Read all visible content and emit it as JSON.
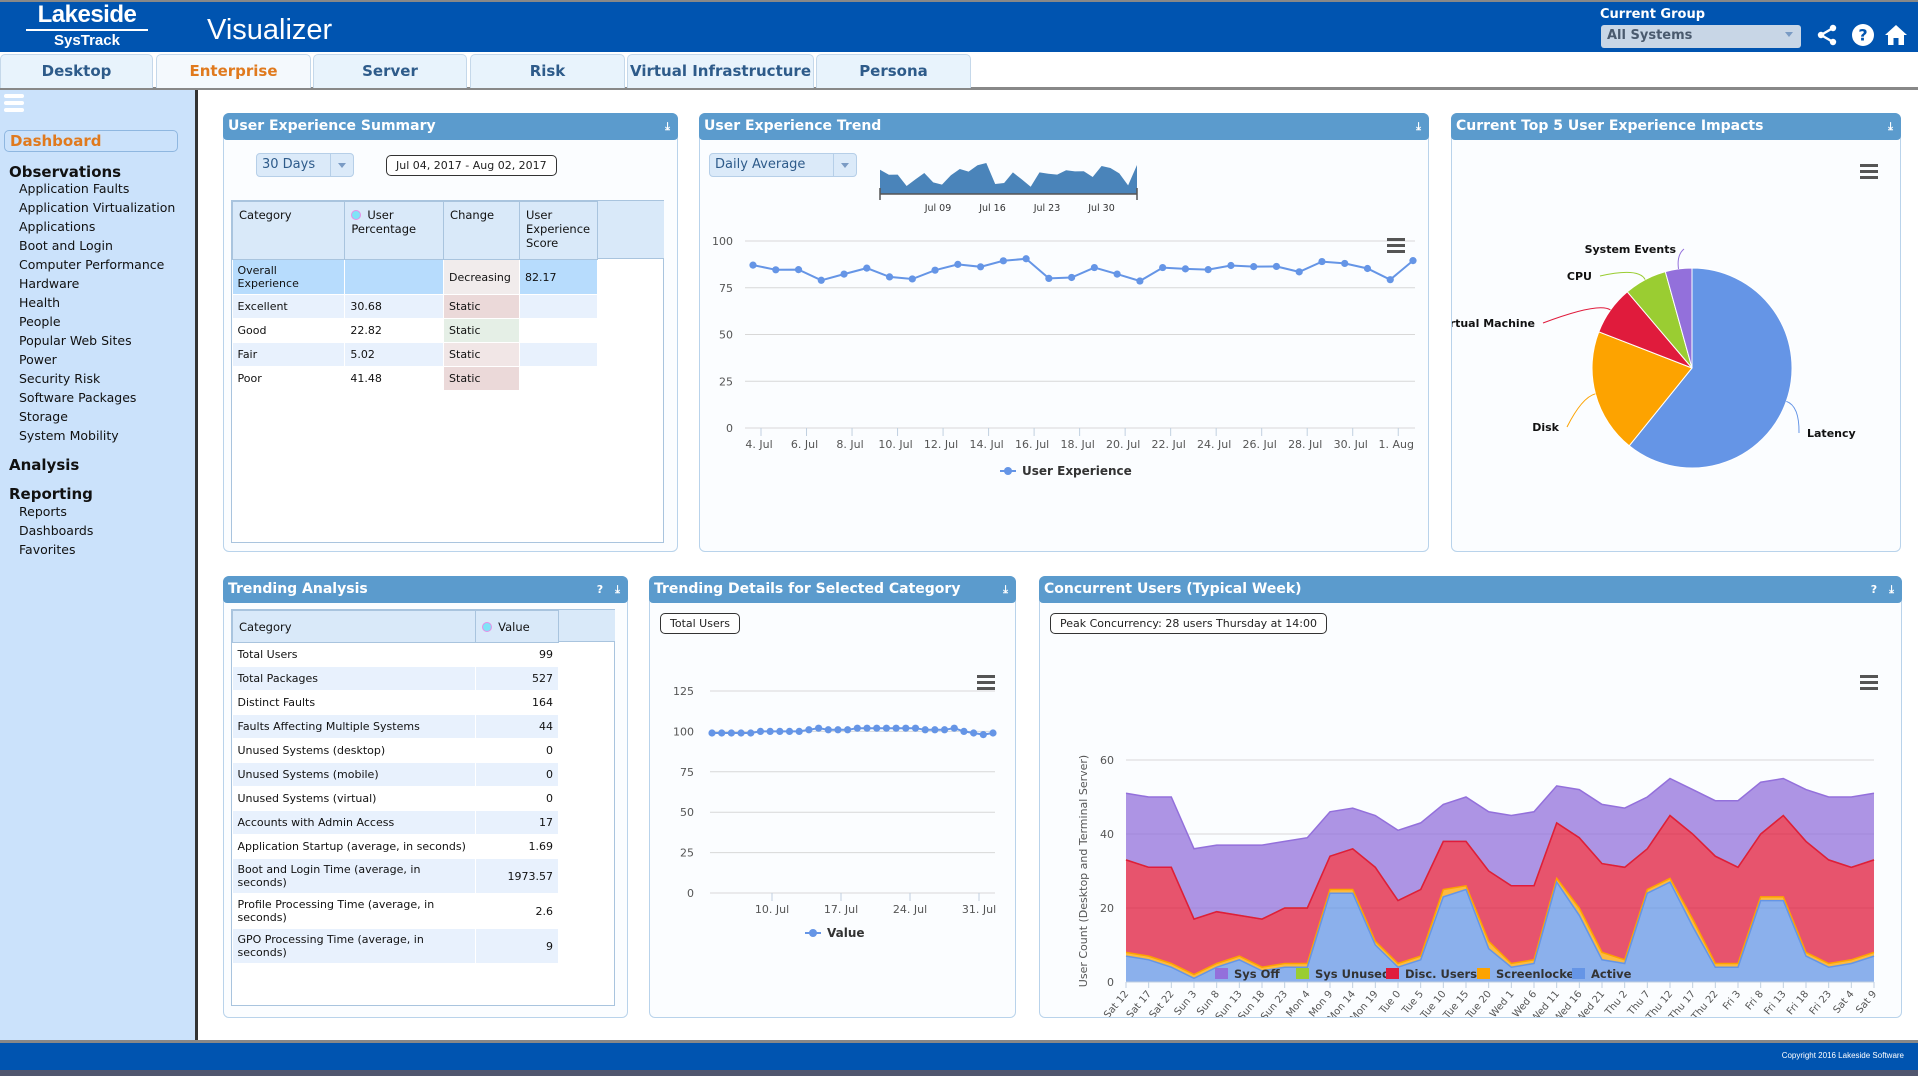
{
  "header": {
    "logo_top": "Lakeside",
    "logo_bottom": "SysTrack",
    "app_title": "Visualizer",
    "group_label": "Current Group",
    "group_value": "All Systems",
    "icons": [
      "share-icon",
      "help-icon",
      "home-icon"
    ]
  },
  "tabs": [
    {
      "label": "Desktop",
      "active": false
    },
    {
      "label": "Enterprise",
      "active": true
    },
    {
      "label": "Server",
      "active": false
    },
    {
      "label": "Risk",
      "active": false
    },
    {
      "label": "Virtual Infrastructure",
      "active": false
    },
    {
      "label": "Persona",
      "active": false
    }
  ],
  "sidebar": {
    "dashboard": "Dashboard",
    "sections": [
      {
        "title": "Observations",
        "items": [
          "Application Faults",
          "Application Virtualization",
          "Applications",
          "Boot and Login",
          "Computer Performance",
          "Hardware",
          "Health",
          "People",
          "Popular Web Sites",
          "Power",
          "Security Risk",
          "Software Packages",
          "Storage",
          "System Mobility"
        ]
      },
      {
        "title": "Analysis",
        "items": []
      },
      {
        "title": "Reporting",
        "items": [
          "Reports",
          "Dashboards",
          "Favorites"
        ]
      }
    ]
  },
  "ux_summary": {
    "title": "User Experience Summary",
    "range_select": "30 Days",
    "date_range": "Jul 04, 2017 - Aug 02, 2017",
    "columns": [
      "Category",
      "User Percentage",
      "Change",
      "User Experience Score"
    ],
    "rows": [
      {
        "category": "Overall Experience",
        "pct": "",
        "change": "Decreasing",
        "score": "82.17"
      },
      {
        "category": "Excellent",
        "pct": "30.68",
        "change": "Static",
        "score": ""
      },
      {
        "category": "Good",
        "pct": "22.82",
        "change": "Static",
        "score": ""
      },
      {
        "category": "Fair",
        "pct": "5.02",
        "change": "Static",
        "score": ""
      },
      {
        "category": "Poor",
        "pct": "41.48",
        "change": "Static",
        "score": ""
      }
    ],
    "change_colors": [
      "#f1ecec",
      "#ebd9d9",
      "#e5efe6",
      "#f1e6e6",
      "#ebd9d9"
    ]
  },
  "ux_trend": {
    "title": "User Experience Trend",
    "aggregation_select": "Daily Average",
    "navigator_labels": [
      "Jul 09",
      "Jul 16",
      "Jul 23",
      "Jul 30"
    ]
  },
  "impacts": {
    "title": "Current Top 5 User Experience Impacts"
  },
  "trending_analysis": {
    "title": "Trending Analysis",
    "columns": [
      "Category",
      "Value"
    ],
    "rows": [
      {
        "category": "Total Users",
        "value": "99"
      },
      {
        "category": "Total Packages",
        "value": "527"
      },
      {
        "category": "Distinct Faults",
        "value": "164"
      },
      {
        "category": "Faults Affecting Multiple Systems",
        "value": "44"
      },
      {
        "category": "Unused Systems (desktop)",
        "value": "0"
      },
      {
        "category": "Unused Systems (mobile)",
        "value": "0"
      },
      {
        "category": "Unused Systems (virtual)",
        "value": "0"
      },
      {
        "category": "Accounts with Admin Access",
        "value": "17"
      },
      {
        "category": "Application Startup (average, in seconds)",
        "value": "1.69"
      },
      {
        "category": "Boot and Login Time (average, in seconds)",
        "value": "1973.57"
      },
      {
        "category": "Profile Processing Time (average, in seconds)",
        "value": "2.6"
      },
      {
        "category": "GPO Processing Time (average, in seconds)",
        "value": "9"
      }
    ]
  },
  "trending_details": {
    "title": "Trending Details for Selected Category",
    "selected": "Total Users"
  },
  "concurrent": {
    "title": "Concurrent Users (Typical Week)",
    "peak": "Peak Concurrency: 28 users Thursday at 14:00"
  },
  "footer": {
    "copyright": "Copyright 2016 Lakeside Software"
  },
  "chart_data": [
    {
      "id": "ux-trend",
      "type": "line",
      "title": "User Experience Trend",
      "x": [
        "4. Jul",
        "5. Jul",
        "6. Jul",
        "7. Jul",
        "8. Jul",
        "9. Jul",
        "10. Jul",
        "11. Jul",
        "12. Jul",
        "13. Jul",
        "14. Jul",
        "15. Jul",
        "16. Jul",
        "17. Jul",
        "18. Jul",
        "19. Jul",
        "20. Jul",
        "21. Jul",
        "22. Jul",
        "23. Jul",
        "24. Jul",
        "25. Jul",
        "26. Jul",
        "27. Jul",
        "28. Jul",
        "29. Jul",
        "30. Jul",
        "31. Jul",
        "1. Aug",
        "2. Aug"
      ],
      "series": [
        {
          "name": "User Experience",
          "color": "#6595e6",
          "values": [
            87.1,
            84.6,
            84.7,
            79.0,
            82.3,
            85.5,
            80.8,
            79.7,
            84.4,
            87.5,
            86.2,
            89.4,
            90.5,
            80.0,
            80.5,
            85.8,
            82.3,
            78.6,
            85.8,
            85.1,
            84.7,
            86.9,
            86.3,
            86.4,
            83.5,
            89.0,
            88.0,
            85.3,
            79.3,
            89.5
          ]
        }
      ],
      "xticks": [
        "4. Jul",
        "6. Jul",
        "8. Jul",
        "10. Jul",
        "12. Jul",
        "14. Jul",
        "16. Jul",
        "18. Jul",
        "20. Jul",
        "22. Jul",
        "24. Jul",
        "26. Jul",
        "28. Jul",
        "30. Jul",
        "1. Aug"
      ],
      "yticks": [
        0,
        25,
        50,
        75,
        100
      ],
      "ylim": [
        0,
        100
      ],
      "grid": true,
      "legend": "bottom-center"
    },
    {
      "id": "impacts",
      "type": "pie",
      "title": "Current Top 5 User Experience Impacts",
      "slices": [
        {
          "label": "Latency",
          "value": 60.8,
          "color": "#6595e6"
        },
        {
          "label": "Disk",
          "value": 20.1,
          "color": "#fda300"
        },
        {
          "label": "Virtual Machine",
          "value": 7.9,
          "color": "#e01b3c"
        },
        {
          "label": "CPU",
          "value": 6.9,
          "color": "#9acd32"
        },
        {
          "label": "System Events",
          "value": 4.3,
          "color": "#9370db"
        }
      ]
    },
    {
      "id": "trending-details",
      "type": "line",
      "title": "Total Users",
      "series": [
        {
          "name": "Value",
          "color": "#6595e6",
          "values": [
            99,
            99,
            99,
            99,
            99,
            100,
            100,
            100,
            100,
            100,
            101,
            102,
            101,
            101,
            101,
            102,
            102,
            102,
            102,
            102,
            102,
            102,
            101,
            101,
            101,
            102,
            100,
            99,
            98,
            99
          ]
        }
      ],
      "xticks": [
        "10. Jul",
        "17. Jul",
        "24. Jul",
        "31. Jul"
      ],
      "yticks": [
        0,
        25,
        50,
        75,
        100,
        125
      ],
      "ylim": [
        0,
        125
      ],
      "grid": true,
      "legend": "bottom-center"
    },
    {
      "id": "concurrent",
      "type": "area",
      "stacked": true,
      "title": "Concurrent Users (Typical Week)",
      "ylabel": "User Count (Desktop and Terminal Server)",
      "yticks": [
        0,
        20,
        40,
        60
      ],
      "ylim": [
        0,
        60
      ],
      "categories": [
        "Sat 12",
        "Sat 17",
        "Sat 22",
        "Sun 3",
        "Sun 8",
        "Sun 13",
        "Sun 18",
        "Sun 23",
        "Mon 4",
        "Mon 9",
        "Mon 14",
        "Mon 19",
        "Tue 0",
        "Tue 5",
        "Tue 10",
        "Tue 15",
        "Tue 20",
        "Wed 1",
        "Wed 6",
        "Wed 11",
        "Wed 16",
        "Wed 21",
        "Thu 2",
        "Thu 7",
        "Thu 12",
        "Thu 17",
        "Thu 22",
        "Fri 3",
        "Fri 8",
        "Fri 13",
        "Fri 18",
        "Fri 23",
        "Sat 4",
        "Sat 9"
      ],
      "series": [
        {
          "name": "Sys Off",
          "color": "#9370db",
          "values": [
            18,
            19,
            19,
            19,
            18,
            19,
            20,
            18,
            19,
            12,
            11,
            14,
            19,
            18,
            10,
            12,
            16,
            19,
            20,
            10,
            13,
            16,
            16,
            14,
            10,
            12,
            15,
            18,
            14,
            10,
            14,
            17,
            19,
            18
          ]
        },
        {
          "name": "Sys Unused",
          "color": "#9acd32",
          "values": [
            0,
            0,
            0,
            0,
            0,
            0,
            0,
            0,
            0,
            0,
            0,
            0,
            0,
            0,
            0,
            0,
            0,
            0,
            0,
            0,
            0,
            0,
            0,
            0,
            0,
            0,
            0,
            0,
            0,
            0,
            0,
            0,
            0,
            0
          ]
        },
        {
          "name": "Disc. Users",
          "color": "#e01b3c",
          "values": [
            25,
            24,
            26,
            15,
            14,
            11,
            13,
            15,
            15,
            9,
            11,
            20,
            17,
            18,
            13,
            12,
            19,
            21,
            20,
            15,
            19,
            24,
            25,
            11,
            17,
            23,
            29,
            26,
            17,
            22,
            30,
            28,
            25,
            25
          ]
        },
        {
          "name": "Screenlocked",
          "color": "#fda300",
          "values": [
            1,
            1,
            1,
            1,
            1,
            1,
            1,
            1,
            1,
            1,
            1,
            1,
            1,
            1,
            2,
            1,
            2,
            1,
            1,
            1,
            2,
            2,
            1,
            1,
            1,
            2,
            1,
            1,
            1,
            1,
            1,
            1,
            1,
            1
          ]
        },
        {
          "name": "Active",
          "color": "#6595e6",
          "values": [
            7,
            6,
            4,
            1,
            4,
            6,
            3,
            4,
            4,
            24,
            24,
            10,
            4,
            6,
            23,
            25,
            9,
            4,
            5,
            27,
            18,
            6,
            5,
            24,
            27,
            15,
            4,
            4,
            22,
            22,
            7,
            4,
            5,
            7
          ]
        }
      ],
      "legend": "bottom-center"
    }
  ]
}
